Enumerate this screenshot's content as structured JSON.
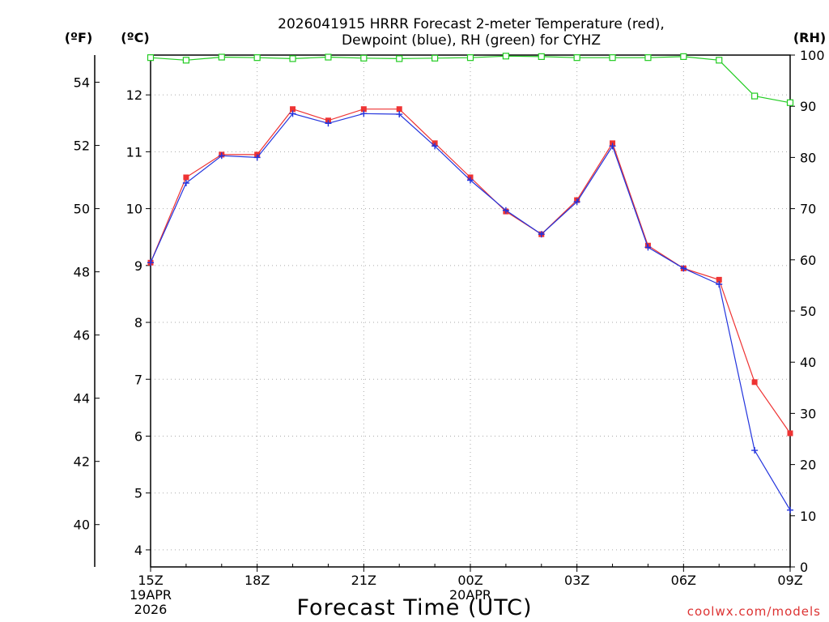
{
  "chart_data": {
    "type": "line",
    "title_line1": "2026041915 HRRR Forecast 2-meter Temperature (red),",
    "title_line2": "Dewpoint (blue), RH (green) for CYHZ",
    "xlabel": "Forecast Time (UTC)",
    "watermark": "coolwx.com/models",
    "units": {
      "fahrenheit": "(ºF)",
      "celsius": "(ºC)",
      "rh": "(RH)"
    },
    "x_hours": [
      0,
      1,
      2,
      3,
      4,
      5,
      6,
      7,
      8,
      9,
      10,
      11,
      12,
      13,
      14,
      15,
      16,
      17,
      18
    ],
    "x_ticks": [
      {
        "hour": 0,
        "label": "15Z",
        "sub1": "19APR",
        "sub2": "2026"
      },
      {
        "hour": 3,
        "label": "18Z"
      },
      {
        "hour": 6,
        "label": "21Z"
      },
      {
        "hour": 9,
        "label": "00Z",
        "sub1": "20APR"
      },
      {
        "hour": 12,
        "label": "03Z"
      },
      {
        "hour": 15,
        "label": "06Z"
      },
      {
        "hour": 18,
        "label": "09Z"
      }
    ],
    "celsius_range": [
      3.7,
      12.7
    ],
    "celsius_ticks": [
      "4",
      "5",
      "6",
      "7",
      "8",
      "9",
      "10",
      "11",
      "12"
    ],
    "fahrenheit_ticks": [
      "40",
      "42",
      "44",
      "46",
      "48",
      "50",
      "52",
      "54"
    ],
    "rh_range": [
      0,
      100
    ],
    "rh_ticks": [
      "0",
      "10",
      "20",
      "30",
      "40",
      "50",
      "60",
      "70",
      "80",
      "90",
      "100"
    ],
    "series": [
      {
        "name": "Temperature",
        "color": "#ee3333",
        "marker": "filled-square",
        "axis": "celsius",
        "values": [
          9.05,
          10.55,
          10.95,
          10.95,
          11.75,
          11.55,
          11.75,
          11.75,
          11.15,
          10.55,
          9.95,
          9.55,
          10.15,
          11.15,
          9.35,
          8.95,
          8.75,
          6.95,
          6.05
        ]
      },
      {
        "name": "Dewpoint",
        "color": "#2233dd",
        "marker": "plus",
        "axis": "celsius",
        "values": [
          9.05,
          10.45,
          10.93,
          10.9,
          11.67,
          11.5,
          11.67,
          11.66,
          11.1,
          10.5,
          9.97,
          9.55,
          10.12,
          11.1,
          9.32,
          8.95,
          8.67,
          5.75,
          4.7
        ]
      },
      {
        "name": "RH",
        "color": "#22cc22",
        "marker": "open-square",
        "axis": "rh",
        "values": [
          99.5,
          99.0,
          99.6,
          99.5,
          99.3,
          99.6,
          99.4,
          99.3,
          99.4,
          99.5,
          99.8,
          99.7,
          99.5,
          99.5,
          99.5,
          99.7,
          99.0,
          92.0,
          90.7
        ]
      }
    ]
  }
}
